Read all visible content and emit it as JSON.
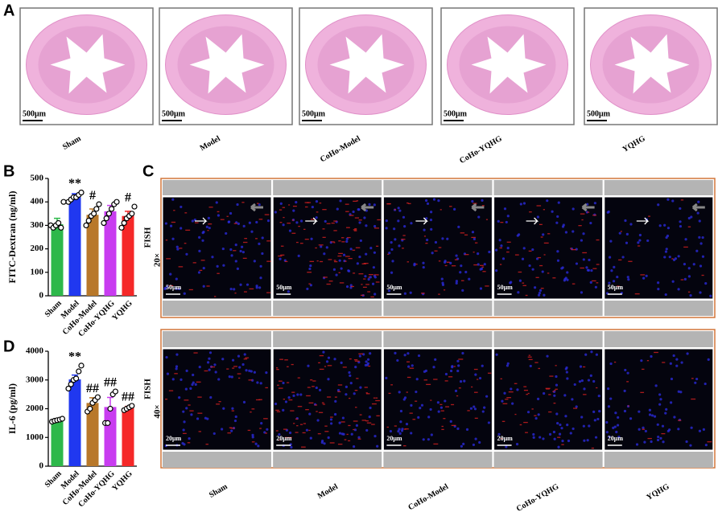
{
  "panel_a": {
    "letter": "A",
    "scale_bar": "500μm",
    "groups": [
      "Sham",
      "Model",
      "CoHo-Model",
      "CoHo-YQHG",
      "YQHG"
    ]
  },
  "panel_c": {
    "letter": "C",
    "groups": [
      "Sham",
      "Model",
      "CoHo-Model",
      "CoHo-YQHG",
      "YQHG"
    ],
    "rows": [
      {
        "stain": "FISH",
        "magnification": "20×",
        "scale_bar": "50μm"
      },
      {
        "stain": "FISH",
        "magnification": "40×",
        "scale_bar": "20μm"
      }
    ]
  },
  "chart_data": [
    {
      "type": "bar",
      "letter": "B",
      "ylabel": "FITC-Dextran (ng/ml)",
      "categories": [
        "Sham",
        "Model",
        "CoHo-Model",
        "CoHo-YQHG",
        "YQHG"
      ],
      "values": [
        305,
        420,
        345,
        360,
        340
      ],
      "errors": [
        25,
        15,
        25,
        25,
        20
      ],
      "points": [
        [
          300,
          290,
          300,
          310,
          290,
          400
        ],
        [
          400,
          410,
          420,
          420,
          430,
          440
        ],
        [
          300,
          320,
          340,
          350,
          370,
          390
        ],
        [
          310,
          330,
          350,
          370,
          390,
          400
        ],
        [
          290,
          310,
          330,
          340,
          350,
          380
        ]
      ],
      "colors": [
        "#2db84a",
        "#2038f0",
        "#b8782a",
        "#c83cf0",
        "#f52828"
      ],
      "annotations": [
        {
          "x": "Model",
          "text": "**"
        },
        {
          "x": "CoHo-Model",
          "text": "#"
        },
        {
          "x": "YQHG",
          "text": "#"
        }
      ],
      "ylim": [
        0,
        500
      ],
      "yticks": [
        0,
        100,
        200,
        300,
        400,
        500
      ]
    },
    {
      "type": "bar",
      "letter": "D",
      "ylabel": "IL-6 (pg/ml)",
      "categories": [
        "Sham",
        "Model",
        "CoHo-Model",
        "CoHo-YQHG",
        "YQHG"
      ],
      "values": [
        1600,
        3020,
        2200,
        2060,
        2020
      ],
      "errors": [
        50,
        150,
        180,
        330,
        60
      ],
      "points": [
        [
          1550,
          1580,
          1600,
          1620,
          1650
        ],
        [
          2700,
          2850,
          3000,
          3050,
          3300,
          3500
        ],
        [
          1900,
          2000,
          2200,
          2300,
          2400
        ],
        [
          1500,
          1500,
          2000,
          2500,
          2600
        ],
        [
          1950,
          2000,
          2050,
          2100
        ]
      ],
      "colors": [
        "#2db84a",
        "#2038f0",
        "#b8782a",
        "#c83cf0",
        "#f52828"
      ],
      "annotations": [
        {
          "x": "Model",
          "text": "**"
        },
        {
          "x": "CoHo-Model",
          "text": "##"
        },
        {
          "x": "CoHo-YQHG",
          "text": "##"
        },
        {
          "x": "YQHG",
          "text": "##"
        }
      ],
      "ylim": [
        0,
        4000
      ],
      "yticks": [
        0,
        1000,
        2000,
        3000,
        4000
      ]
    }
  ]
}
